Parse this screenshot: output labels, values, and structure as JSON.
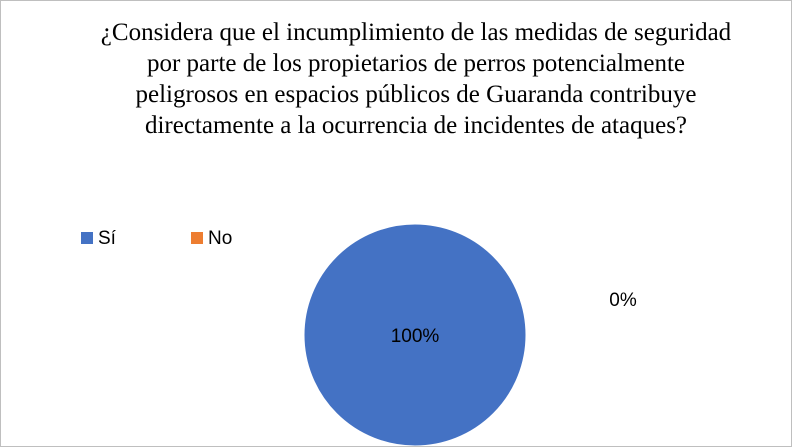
{
  "chart_data": {
    "type": "pie",
    "title": "¿Considera que el incumplimiento de las medidas de seguridad por parte de los propietarios de perros potencialmente peligrosos en espacios públicos de Guaranda contribuye directamente a la ocurrencia de incidentes de ataques?",
    "categories": [
      "Sí",
      "No"
    ],
    "values": [
      100,
      0
    ],
    "value_labels": [
      "100%",
      "0%"
    ],
    "colors": [
      "#4472c4",
      "#ed7d31"
    ],
    "legend": "top-left"
  }
}
